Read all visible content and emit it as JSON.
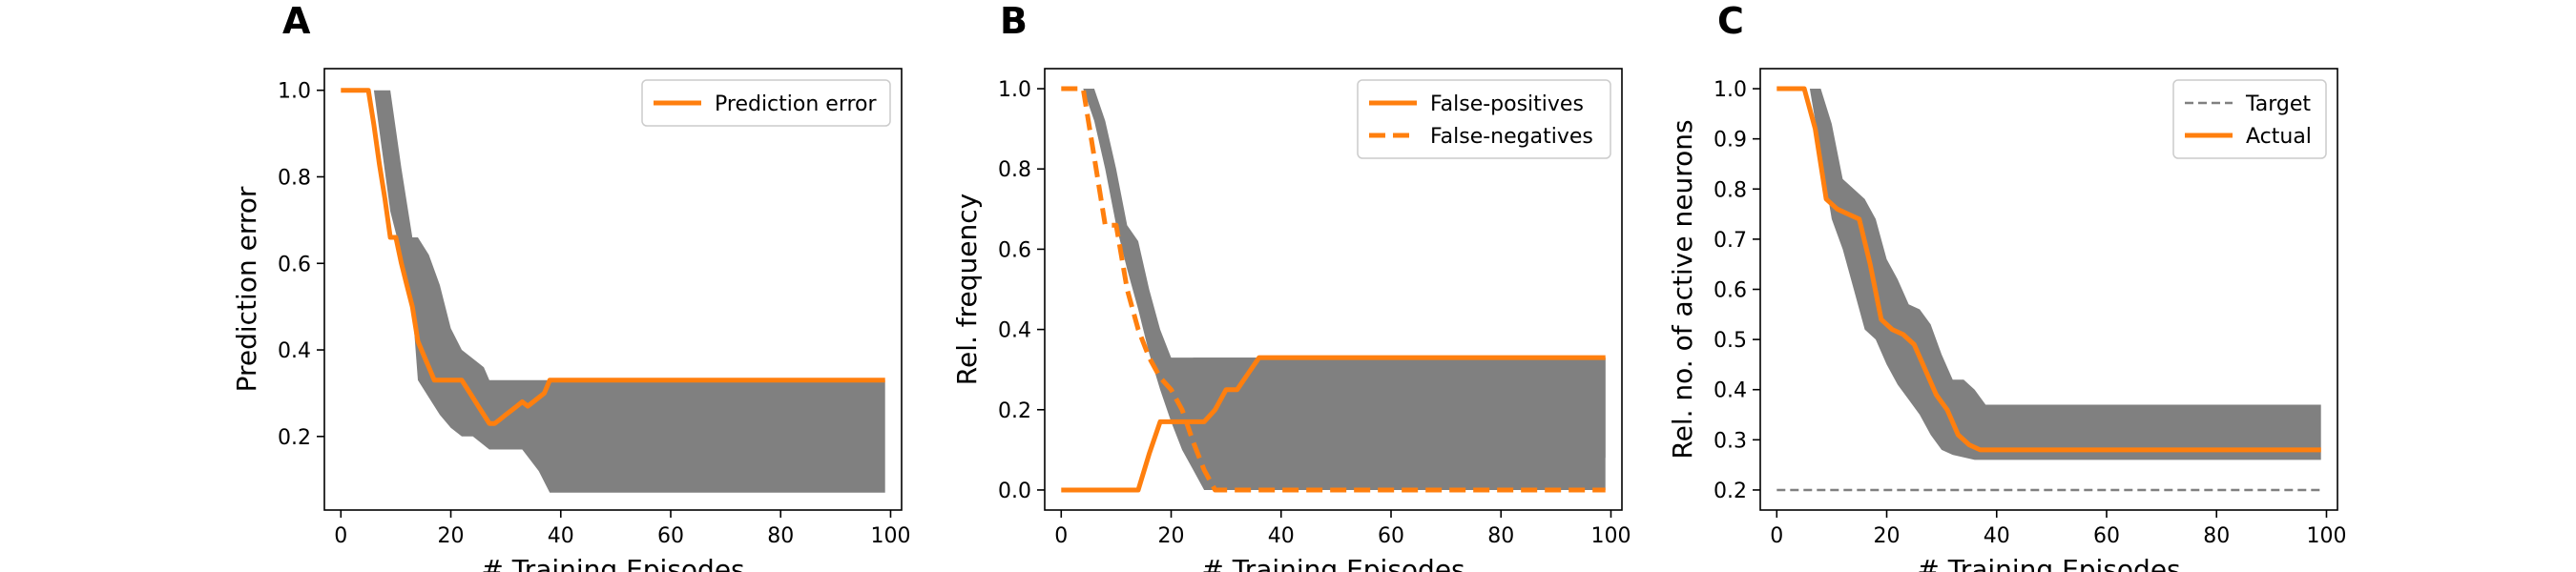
{
  "figure": {
    "panel_labels": [
      "A",
      "B",
      "C"
    ]
  },
  "colors": {
    "series": "#ff7f0e",
    "band": "#808080",
    "target": "#808080"
  },
  "chart_data": [
    {
      "type": "line",
      "panel": "A",
      "xlabel": "# Training Episodes",
      "ylabel": "Prediction error",
      "xlim": [
        -3,
        102
      ],
      "ylim": [
        0.03,
        1.05
      ],
      "xticks": [
        0,
        20,
        40,
        60,
        80,
        100
      ],
      "yticks": [
        0.2,
        0.4,
        0.6,
        0.8,
        1.0
      ],
      "ytick_labels": [
        "0.2",
        "0.4",
        "0.6",
        "0.8",
        "1.0"
      ],
      "legend": {
        "position": "top-right",
        "entries": [
          "Prediction error"
        ]
      },
      "band": {
        "x": [
          0,
          6,
          9,
          11,
          13,
          14,
          16,
          18,
          20,
          22,
          24,
          26,
          27,
          30,
          33,
          36,
          38,
          40,
          50,
          60,
          70,
          80,
          90,
          99
        ],
        "lower": [
          1.0,
          1.0,
          0.72,
          0.62,
          0.5,
          0.33,
          0.29,
          0.25,
          0.22,
          0.2,
          0.2,
          0.18,
          0.17,
          0.17,
          0.17,
          0.12,
          0.07,
          0.07,
          0.07,
          0.07,
          0.07,
          0.07,
          0.07,
          0.07
        ],
        "upper": [
          1.0,
          1.0,
          1.0,
          0.82,
          0.66,
          0.66,
          0.62,
          0.55,
          0.45,
          0.4,
          0.38,
          0.36,
          0.33,
          0.33,
          0.33,
          0.33,
          0.33,
          0.33,
          0.33,
          0.33,
          0.33,
          0.33,
          0.33,
          0.33
        ]
      },
      "series": [
        {
          "name": "Prediction error",
          "style": "solid",
          "x": [
            0,
            5,
            6,
            7,
            8,
            9,
            10,
            11,
            12,
            13,
            14,
            15,
            16,
            17,
            18,
            19,
            20,
            21,
            22,
            23,
            24,
            25,
            26,
            27,
            28,
            29,
            30,
            31,
            32,
            33,
            34,
            35,
            36,
            37,
            38,
            40,
            50,
            60,
            70,
            80,
            90,
            99
          ],
          "y": [
            1.0,
            1.0,
            0.92,
            0.83,
            0.75,
            0.66,
            0.66,
            0.6,
            0.55,
            0.5,
            0.42,
            0.39,
            0.36,
            0.33,
            0.33,
            0.33,
            0.33,
            0.33,
            0.33,
            0.31,
            0.29,
            0.27,
            0.25,
            0.23,
            0.23,
            0.24,
            0.25,
            0.26,
            0.27,
            0.28,
            0.27,
            0.28,
            0.29,
            0.3,
            0.33,
            0.33,
            0.33,
            0.33,
            0.33,
            0.33,
            0.33,
            0.33
          ]
        }
      ]
    },
    {
      "type": "line",
      "panel": "B",
      "xlabel": "# Training Episodes",
      "ylabel": "Rel. frequency",
      "xlim": [
        -3,
        102
      ],
      "ylim": [
        -0.05,
        1.05
      ],
      "xticks": [
        0,
        20,
        40,
        60,
        80,
        100
      ],
      "yticks": [
        0.0,
        0.2,
        0.4,
        0.6,
        0.8,
        1.0
      ],
      "ytick_labels": [
        "0.0",
        "0.2",
        "0.4",
        "0.6",
        "0.8",
        "1.0"
      ],
      "legend": {
        "position": "top-right",
        "entries": [
          "False-positives",
          "False-negatives"
        ]
      },
      "bands": [
        {
          "x": [
            4,
            6,
            8,
            10,
            12,
            14,
            16,
            18,
            20,
            22,
            24,
            26,
            28,
            30,
            32,
            34,
            36,
            38,
            40,
            50,
            60,
            70,
            80,
            90,
            99
          ],
          "lower": [
            1.0,
            0.92,
            0.8,
            0.66,
            0.55,
            0.45,
            0.34,
            0.25,
            0.17,
            0.1,
            0.05,
            0.0,
            0.0,
            0.0,
            0.0,
            0.0,
            0.0,
            0.0,
            0.0,
            0.0,
            0.0,
            0.0,
            0.0,
            0.0,
            0.0
          ],
          "upper": [
            1.0,
            1.0,
            0.92,
            0.8,
            0.66,
            0.62,
            0.5,
            0.4,
            0.33,
            0.33,
            0.33,
            0.33,
            0.33,
            0.33,
            0.33,
            0.33,
            0.33,
            0.33,
            0.33,
            0.33,
            0.33,
            0.33,
            0.33,
            0.33,
            0.33
          ]
        },
        {
          "x": [
            24,
            26,
            28,
            30,
            32,
            34,
            36,
            38,
            40,
            50,
            60,
            70,
            80,
            90,
            99
          ],
          "lower": [
            0.17,
            0.17,
            0.17,
            0.14,
            0.12,
            0.1,
            0.08,
            0.08,
            0.08,
            0.08,
            0.08,
            0.08,
            0.08,
            0.08,
            0.08
          ],
          "upper": [
            0.33,
            0.33,
            0.33,
            0.33,
            0.33,
            0.33,
            0.33,
            0.33,
            0.33,
            0.33,
            0.33,
            0.33,
            0.33,
            0.33,
            0.33
          ]
        }
      ],
      "series": [
        {
          "name": "False-positives",
          "style": "solid",
          "x": [
            0,
            14,
            16,
            18,
            20,
            22,
            24,
            26,
            28,
            30,
            32,
            34,
            36,
            38,
            40,
            50,
            60,
            70,
            80,
            90,
            99
          ],
          "y": [
            0.0,
            0.0,
            0.09,
            0.17,
            0.17,
            0.17,
            0.17,
            0.17,
            0.2,
            0.25,
            0.25,
            0.29,
            0.33,
            0.33,
            0.33,
            0.33,
            0.33,
            0.33,
            0.33,
            0.33,
            0.33
          ]
        },
        {
          "name": "False-negatives",
          "style": "dashed",
          "x": [
            0,
            4,
            6,
            8,
            10,
            12,
            14,
            16,
            18,
            20,
            22,
            24,
            26,
            28,
            30,
            40,
            50,
            60,
            70,
            80,
            90,
            99
          ],
          "y": [
            1.0,
            1.0,
            0.83,
            0.66,
            0.66,
            0.5,
            0.4,
            0.33,
            0.28,
            0.25,
            0.2,
            0.12,
            0.05,
            0.0,
            0.0,
            0.0,
            0.0,
            0.0,
            0.0,
            0.0,
            0.0,
            0.0
          ]
        }
      ]
    },
    {
      "type": "line",
      "panel": "C",
      "xlabel": "# Training Episodes",
      "ylabel": "Rel. no. of active neurons",
      "xlim": [
        -3,
        102
      ],
      "ylim": [
        0.16,
        1.04
      ],
      "xticks": [
        0,
        20,
        40,
        60,
        80,
        100
      ],
      "yticks": [
        0.2,
        0.3,
        0.4,
        0.5,
        0.6,
        0.7,
        0.8,
        0.9,
        1.0
      ],
      "ytick_labels": [
        "0.2",
        "0.3",
        "0.4",
        "0.5",
        "0.6",
        "0.7",
        "0.8",
        "0.9",
        "1.0"
      ],
      "legend": {
        "position": "top-right",
        "entries": [
          "Target",
          "Actual"
        ]
      },
      "band": {
        "x": [
          0,
          6,
          8,
          10,
          12,
          14,
          16,
          18,
          20,
          22,
          24,
          26,
          28,
          30,
          32,
          34,
          36,
          38,
          40,
          50,
          60,
          70,
          80,
          90,
          99
        ],
        "lower": [
          1.0,
          1.0,
          0.87,
          0.74,
          0.68,
          0.6,
          0.52,
          0.5,
          0.45,
          0.41,
          0.38,
          0.35,
          0.31,
          0.28,
          0.27,
          0.265,
          0.26,
          0.26,
          0.26,
          0.26,
          0.26,
          0.26,
          0.26,
          0.26,
          0.26
        ],
        "upper": [
          1.0,
          1.0,
          1.0,
          0.93,
          0.82,
          0.8,
          0.78,
          0.74,
          0.66,
          0.62,
          0.57,
          0.56,
          0.53,
          0.47,
          0.42,
          0.42,
          0.4,
          0.37,
          0.37,
          0.37,
          0.37,
          0.37,
          0.37,
          0.37,
          0.37
        ]
      },
      "series": [
        {
          "name": "Target",
          "style": "dashed-thin",
          "x": [
            0,
            99
          ],
          "y": [
            0.2,
            0.2
          ]
        },
        {
          "name": "Actual",
          "style": "solid",
          "x": [
            0,
            5,
            7,
            9,
            11,
            13,
            15,
            17,
            19,
            21,
            23,
            25,
            27,
            29,
            31,
            33,
            35,
            37,
            38,
            40,
            50,
            60,
            70,
            80,
            90,
            99
          ],
          "y": [
            1.0,
            1.0,
            0.92,
            0.78,
            0.76,
            0.75,
            0.74,
            0.65,
            0.54,
            0.52,
            0.51,
            0.49,
            0.44,
            0.39,
            0.36,
            0.31,
            0.29,
            0.28,
            0.28,
            0.28,
            0.28,
            0.28,
            0.28,
            0.28,
            0.28,
            0.28
          ]
        }
      ]
    }
  ]
}
